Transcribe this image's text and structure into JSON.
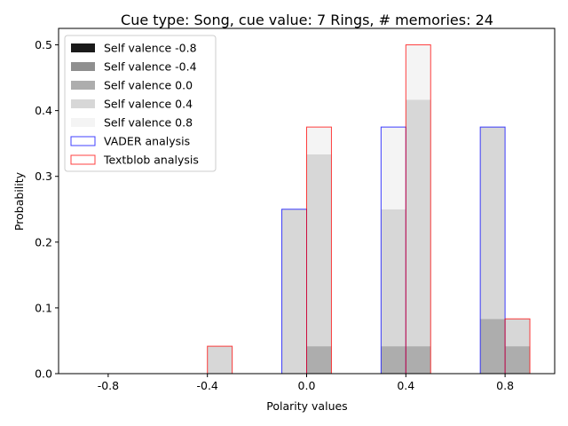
{
  "chart_data": {
    "type": "bar",
    "title": "Cue type: Song, cue value: 7 Rings, # memories: 24",
    "xlabel": "Polarity values",
    "ylabel": "Probability",
    "xlim": [
      -1.0,
      1.0
    ],
    "ylim": [
      0,
      0.525
    ],
    "x_ticks": [
      -0.8,
      -0.4,
      0.0,
      0.4,
      0.8
    ],
    "x_tick_labels": [
      "-0.8",
      "-0.4",
      "0.0",
      "0.4",
      "0.8"
    ],
    "y_ticks": [
      0.0,
      0.1,
      0.2,
      0.3,
      0.4,
      0.5
    ],
    "y_tick_labels": [
      "0.0",
      "0.1",
      "0.2",
      "0.3",
      "0.4",
      "0.5"
    ],
    "bar_width": 0.1,
    "grid": false,
    "legend_position": "upper-left",
    "vader_positions": [
      -0.9,
      -0.5,
      -0.1,
      0.3,
      0.7
    ],
    "textblob_positions": [
      -0.8,
      -0.4,
      0.0,
      0.4,
      0.8
    ],
    "self_valence_series": [
      {
        "name": "Self valence -0.8",
        "color": "#1a1a1a",
        "vader": [
          0,
          0,
          0,
          0,
          0
        ],
        "textblob": [
          0,
          0,
          0,
          0,
          0
        ]
      },
      {
        "name": "Self valence -0.4",
        "color": "#8f8f8f",
        "vader": [
          0,
          0,
          0,
          0,
          0
        ],
        "textblob": [
          0,
          0,
          0,
          0,
          0
        ]
      },
      {
        "name": "Self valence 0.0",
        "color": "#adadad",
        "vader": [
          0,
          0,
          0,
          0.0417,
          0.0833
        ],
        "textblob": [
          0,
          0,
          0.0417,
          0.0417,
          0.0417
        ]
      },
      {
        "name": "Self valence 0.4",
        "color": "#d7d7d7",
        "vader": [
          0,
          0,
          0.25,
          0.2083,
          0.2917
        ],
        "textblob": [
          0,
          0.0417,
          0.2917,
          0.375,
          0.0417
        ]
      },
      {
        "name": "Self valence 0.8",
        "color": "#f4f4f4",
        "vader": [
          0,
          0,
          0,
          0.125,
          0
        ],
        "textblob": [
          0,
          0,
          0.0417,
          0.0833,
          0
        ]
      }
    ],
    "outline_series": [
      {
        "name": "VADER analysis",
        "color": "#0000ff",
        "values": [
          0,
          0,
          0.25,
          0.375,
          0.375
        ]
      },
      {
        "name": "Textblob analysis",
        "color": "#ff0000",
        "values": [
          0,
          0.0417,
          0.375,
          0.5,
          0.0833
        ]
      }
    ]
  }
}
